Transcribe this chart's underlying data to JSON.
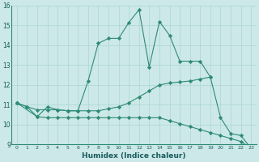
{
  "line1_x": [
    0,
    1,
    2,
    3,
    4,
    5,
    6,
    7,
    8,
    9,
    10,
    11,
    12,
    13,
    14,
    15,
    16,
    17,
    18,
    19
  ],
  "line1_y": [
    11.1,
    10.9,
    10.4,
    10.9,
    10.75,
    10.7,
    10.7,
    12.2,
    14.1,
    14.35,
    14.35,
    15.15,
    15.8,
    12.9,
    15.2,
    14.5,
    13.2,
    13.2,
    13.2,
    12.4
  ],
  "line2_x": [
    0,
    1,
    2,
    3,
    4,
    5,
    6,
    7,
    8,
    9,
    10,
    11,
    12,
    13,
    14,
    15,
    16,
    17,
    18,
    19,
    20,
    21,
    22,
    23
  ],
  "line2_y": [
    11.1,
    10.9,
    10.75,
    10.75,
    10.75,
    10.7,
    10.7,
    10.7,
    10.7,
    10.8,
    10.9,
    11.1,
    11.4,
    11.7,
    12.0,
    12.1,
    12.15,
    12.2,
    12.3,
    12.4,
    10.35,
    9.55,
    9.45,
    8.8
  ],
  "line3_x": [
    0,
    2,
    3,
    4,
    5,
    6,
    7,
    8,
    9,
    10,
    11,
    12,
    13,
    14,
    15,
    16,
    17,
    18,
    19,
    20,
    21,
    22,
    23
  ],
  "line3_y": [
    11.1,
    10.4,
    10.35,
    10.35,
    10.35,
    10.35,
    10.35,
    10.35,
    10.35,
    10.35,
    10.35,
    10.35,
    10.35,
    10.35,
    10.2,
    10.05,
    9.9,
    9.75,
    9.6,
    9.45,
    9.3,
    9.15,
    8.8
  ],
  "color": "#2e8b74",
  "xlabel": "Humidex (Indice chaleur)",
  "xlim": [
    -0.5,
    23.5
  ],
  "ylim": [
    9,
    16
  ],
  "bg_color": "#cce8e8",
  "grid_color": "#aad4d4"
}
